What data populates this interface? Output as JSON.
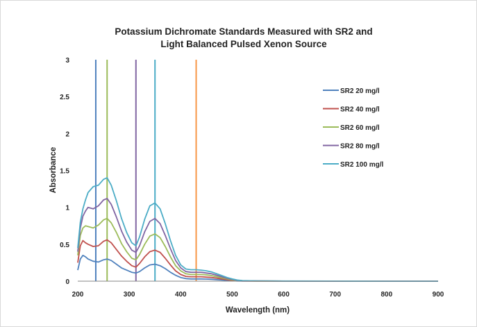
{
  "chart_data": {
    "type": "line",
    "title_lines": [
      "Potassium Dichromate Standards Measured with SR2 and",
      "Light Balanced Pulsed Xenon Source"
    ],
    "xlabel": "Wavelength (nm)",
    "ylabel": "Absorbance",
    "xlim": [
      200,
      900
    ],
    "ylim": [
      0,
      3
    ],
    "x_ticks": [
      200,
      300,
      400,
      500,
      600,
      700,
      800,
      900
    ],
    "y_ticks": [
      0,
      0.5,
      1,
      1.5,
      2,
      2.5,
      3
    ],
    "y_tick_labels": [
      "0",
      "0.5",
      "1",
      "1.5",
      "2",
      "2.5",
      "3"
    ],
    "grid": false,
    "legend_position": "right",
    "x": [
      200,
      205,
      210,
      215,
      220,
      230,
      240,
      250,
      257,
      265,
      275,
      285,
      295,
      305,
      313,
      320,
      330,
      340,
      350,
      360,
      370,
      380,
      390,
      400,
      410,
      420,
      430,
      440,
      450,
      460,
      470,
      480,
      490,
      500,
      510,
      520,
      550,
      600,
      700,
      800,
      900
    ],
    "series": [
      {
        "name": "SR2 20 mg/l",
        "color": "#4f81bd",
        "values": [
          0.15,
          0.3,
          0.35,
          0.33,
          0.3,
          0.27,
          0.26,
          0.29,
          0.3,
          0.28,
          0.23,
          0.18,
          0.15,
          0.12,
          0.11,
          0.13,
          0.18,
          0.22,
          0.23,
          0.21,
          0.17,
          0.12,
          0.08,
          0.05,
          0.035,
          0.03,
          0.03,
          0.03,
          0.028,
          0.025,
          0.02,
          0.015,
          0.01,
          0.006,
          0.003,
          0.002,
          0.001,
          0.001,
          0.0,
          0.0,
          0.0
        ]
      },
      {
        "name": "SR2 40 mg/l",
        "color": "#c0504d",
        "values": [
          0.25,
          0.48,
          0.55,
          0.52,
          0.5,
          0.47,
          0.48,
          0.54,
          0.56,
          0.52,
          0.43,
          0.34,
          0.27,
          0.21,
          0.19,
          0.24,
          0.33,
          0.4,
          0.42,
          0.39,
          0.31,
          0.22,
          0.14,
          0.09,
          0.065,
          0.06,
          0.06,
          0.06,
          0.055,
          0.05,
          0.04,
          0.03,
          0.02,
          0.012,
          0.006,
          0.003,
          0.002,
          0.001,
          0.0,
          0.0,
          0.0
        ]
      },
      {
        "name": "SR2 60 mg/l",
        "color": "#9bbb59",
        "values": [
          0.35,
          0.62,
          0.72,
          0.75,
          0.74,
          0.72,
          0.76,
          0.83,
          0.85,
          0.79,
          0.66,
          0.51,
          0.4,
          0.31,
          0.29,
          0.36,
          0.5,
          0.61,
          0.64,
          0.59,
          0.47,
          0.33,
          0.21,
          0.14,
          0.1,
          0.09,
          0.09,
          0.09,
          0.085,
          0.075,
          0.06,
          0.045,
          0.03,
          0.018,
          0.009,
          0.005,
          0.002,
          0.001,
          0.0,
          0.0,
          0.0
        ]
      },
      {
        "name": "SR2 80 mg/l",
        "color": "#8064a2",
        "values": [
          0.4,
          0.72,
          0.88,
          0.95,
          1.0,
          0.98,
          1.02,
          1.1,
          1.12,
          1.04,
          0.87,
          0.68,
          0.53,
          0.42,
          0.39,
          0.48,
          0.67,
          0.81,
          0.85,
          0.78,
          0.62,
          0.44,
          0.28,
          0.18,
          0.13,
          0.12,
          0.12,
          0.12,
          0.11,
          0.1,
          0.08,
          0.06,
          0.04,
          0.024,
          0.012,
          0.006,
          0.003,
          0.001,
          0.0,
          0.0,
          0.0
        ]
      },
      {
        "name": "SR2 100 mg/l",
        "color": "#4bacc6",
        "values": [
          0.45,
          0.8,
          0.98,
          1.1,
          1.2,
          1.28,
          1.3,
          1.38,
          1.4,
          1.3,
          1.09,
          0.85,
          0.66,
          0.52,
          0.48,
          0.6,
          0.84,
          1.02,
          1.06,
          0.98,
          0.78,
          0.55,
          0.35,
          0.22,
          0.165,
          0.155,
          0.155,
          0.15,
          0.14,
          0.125,
          0.1,
          0.075,
          0.05,
          0.03,
          0.015,
          0.008,
          0.004,
          0.002,
          0.001,
          0.0,
          0.0
        ]
      }
    ],
    "vertical_lines": [
      {
        "x": 235,
        "color": "#4f81bd"
      },
      {
        "x": 257,
        "color": "#9bbb59"
      },
      {
        "x": 313,
        "color": "#8064a2"
      },
      {
        "x": 350,
        "color": "#4bacc6"
      },
      {
        "x": 430,
        "color": "#f79646"
      }
    ]
  }
}
